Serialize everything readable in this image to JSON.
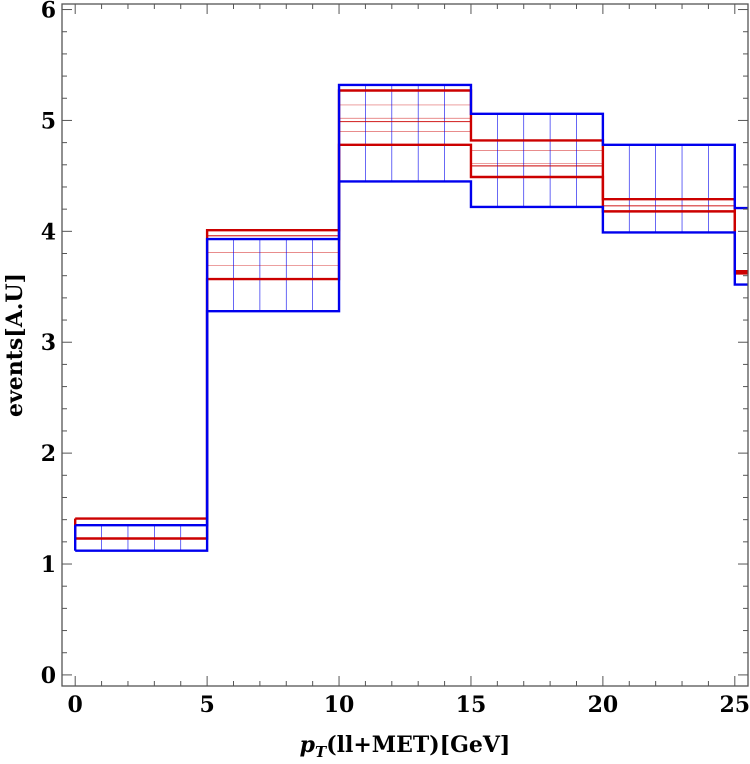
{
  "chart_data": {
    "type": "step",
    "title": "",
    "xlabel": "p_T(ll+MET)[GeV]",
    "xlabel_parts": {
      "var": "p",
      "sub": "T",
      "rest": "(ll+MET)[GeV]"
    },
    "ylabel": "events[A.U]",
    "xlim": [
      -0.5,
      25.5
    ],
    "ylim": [
      -0.1,
      6.05
    ],
    "x_ticks": [
      0,
      5,
      10,
      15,
      20,
      25
    ],
    "x_tick_labels": [
      "0",
      "5",
      "10",
      "15",
      "20",
      "25"
    ],
    "x_minor_step": 1,
    "y_ticks": [
      0,
      1,
      2,
      3,
      4,
      5,
      6
    ],
    "y_tick_labels": [
      "0",
      "1",
      "2",
      "3",
      "4",
      "5",
      "6"
    ],
    "y_minor_step": 0.2,
    "bin_edges": [
      0,
      5,
      10,
      15,
      20,
      25,
      26
    ],
    "series": [
      {
        "name": "red band",
        "color": "#cc0000",
        "hatch": "horizontal",
        "upper": [
          1.41,
          4.01,
          5.27,
          4.82,
          4.29,
          3.64
        ],
        "inner": [
          null,
          3.96,
          4.99,
          4.59,
          4.23,
          null
        ],
        "lower": [
          1.23,
          3.57,
          4.78,
          4.49,
          4.18,
          3.62
        ]
      },
      {
        "name": "blue band",
        "color": "#0000ee",
        "hatch": "vertical",
        "upper": [
          1.35,
          3.93,
          5.32,
          5.06,
          4.78,
          4.21
        ],
        "lower": [
          1.12,
          3.28,
          4.45,
          4.22,
          3.99,
          3.52
        ]
      }
    ]
  }
}
